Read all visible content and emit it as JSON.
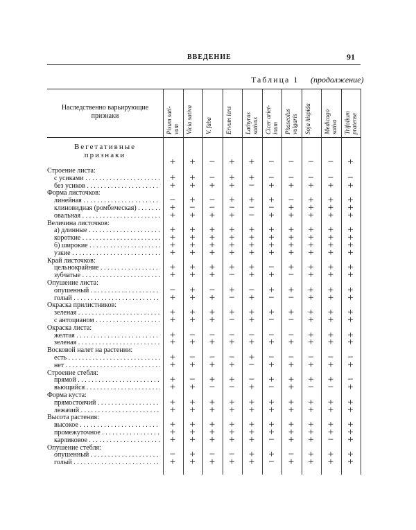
{
  "header": {
    "title": "ВВЕДЕНИЕ",
    "page": "91"
  },
  "table": {
    "caption": "Таблица 1",
    "caption_note": "(продолжение)",
    "first_header": [
      "Наследственно варьирующие",
      "признаки"
    ],
    "columns": [
      [
        "Pisum sati-",
        "vum"
      ],
      [
        "Vicia sativa"
      ],
      [
        "V. faba"
      ],
      [
        "Ervum lens"
      ],
      [
        "Lathyrus",
        "sativus"
      ],
      [
        "Cicer ariet-",
        "inum"
      ],
      [
        "Phaseolus",
        "vulgaris"
      ],
      [
        "Soja hispida"
      ],
      [
        "Medicago",
        "sativa"
      ],
      [
        "Trifolium",
        "pratense"
      ]
    ],
    "section": {
      "title": [
        "Вегетативные",
        "признаки"
      ],
      "cells": [
        "+",
        "+",
        "−",
        "+",
        "+",
        "−",
        "−",
        "−",
        "−",
        "+"
      ]
    },
    "rows": [
      {
        "label": "Строение листа:"
      },
      {
        "label": "с усиками",
        "cells": [
          "+",
          "+",
          "−",
          "+",
          "+",
          "−",
          "−",
          "−",
          "−",
          "−"
        ]
      },
      {
        "label": "без усиков",
        "cells": [
          "+",
          "+",
          "+",
          "+",
          "−",
          "+",
          "+",
          "+",
          "+",
          "+"
        ]
      },
      {
        "label": "Форма листочков:"
      },
      {
        "label": "линейная",
        "cells": [
          "−",
          "+",
          "−",
          "+",
          "+",
          "+",
          "−",
          "+",
          "+",
          "+"
        ]
      },
      {
        "label": "клиновидная (ромбическая)",
        "cells": [
          "+",
          "−",
          "−",
          "−",
          "−",
          "−",
          "+",
          "+",
          "+",
          "+"
        ]
      },
      {
        "label": "овальная",
        "cells": [
          "+",
          "+",
          "+",
          "+",
          "−",
          "+",
          "+",
          "+",
          "+",
          "+"
        ]
      },
      {
        "label": "Величина листочков:"
      },
      {
        "label": "а) длинные",
        "cells": [
          "+",
          "+",
          "+",
          "+",
          "+",
          "+",
          "+",
          "+",
          "+",
          "+"
        ]
      },
      {
        "label": "короткие",
        "cells": [
          "+",
          "+",
          "+",
          "+",
          "+",
          "+",
          "+",
          "+",
          "+",
          "+"
        ]
      },
      {
        "label": "б) широкие",
        "cells": [
          "+",
          "+",
          "+",
          "+",
          "+",
          "+",
          "+",
          "+",
          "+",
          "+"
        ]
      },
      {
        "label": "узкие",
        "cells": [
          "+",
          "+",
          "+",
          "+",
          "+",
          "+",
          "+",
          "+",
          "+",
          "+"
        ]
      },
      {
        "label": "Край листочков:"
      },
      {
        "label": "цельнокрайние",
        "cells": [
          "+",
          "+",
          "+",
          "+",
          "+",
          "−",
          "+",
          "+",
          "+",
          "+"
        ]
      },
      {
        "label": "зубчатые",
        "cells": [
          "+",
          "+",
          "+",
          "−",
          "+",
          "+",
          "−",
          "+",
          "+",
          "+"
        ]
      },
      {
        "label": "Опушение листа:"
      },
      {
        "label": "опушенный",
        "cells": [
          "−",
          "+",
          "−",
          "+",
          "−",
          "+",
          "+",
          "+",
          "+",
          "+"
        ]
      },
      {
        "label": "голый",
        "cells": [
          "+",
          "+",
          "+",
          "−",
          "+",
          "−",
          "−",
          "+",
          "+",
          "+"
        ]
      },
      {
        "label": "Окраска прилистников:"
      },
      {
        "label": "зеленая",
        "cells": [
          "+",
          "+",
          "+",
          "+",
          "+",
          "+",
          "+",
          "+",
          "+",
          "+"
        ]
      },
      {
        "label": "с антоцианом",
        "cells": [
          "+",
          "+",
          "+",
          "−",
          "+",
          "−",
          "−",
          "+",
          "+",
          "+"
        ]
      },
      {
        "label": "Окраска листа:"
      },
      {
        "label": "желтая",
        "cells": [
          "+",
          "−",
          "−",
          "−",
          "−",
          "−",
          "−",
          "+",
          "+",
          "+"
        ]
      },
      {
        "label": "зеленая",
        "cells": [
          "+",
          "+",
          "+",
          "+",
          "+",
          "+",
          "+",
          "+",
          "+",
          "+"
        ]
      },
      {
        "label": "Восковой налет на растении:"
      },
      {
        "label": "есть",
        "cells": [
          "+",
          "−",
          "−",
          "−",
          "+",
          "−",
          "−",
          "−",
          "−",
          "−"
        ]
      },
      {
        "label": "нет",
        "cells": [
          "+",
          "+",
          "+",
          "+",
          "−",
          "+",
          "+",
          "+",
          "+",
          "+"
        ]
      },
      {
        "label": "Строение стебля:"
      },
      {
        "label": "прямой",
        "cells": [
          "+",
          "−",
          "+",
          "+",
          "−",
          "+",
          "+",
          "+",
          "+",
          "−"
        ]
      },
      {
        "label": "вьющийся",
        "cells": [
          "+",
          "+",
          "−",
          "−",
          "+",
          "−",
          "+",
          "−",
          "−",
          "+"
        ]
      },
      {
        "label": "Форма куста:"
      },
      {
        "label": "прямостоячий",
        "cells": [
          "+",
          "+",
          "+",
          "+",
          "+",
          "+",
          "+",
          "+",
          "+",
          "+"
        ]
      },
      {
        "label": "лежачий",
        "cells": [
          "+",
          "+",
          "+",
          "+",
          "+",
          "+",
          "+",
          "+",
          "+",
          "+"
        ]
      },
      {
        "label": "Высота растения:"
      },
      {
        "label": "высокое",
        "cells": [
          "+",
          "+",
          "+",
          "+",
          "+",
          "+",
          "+",
          "+",
          "+",
          "+"
        ]
      },
      {
        "label": "промежуточное",
        "cells": [
          "+",
          "+",
          "+",
          "+",
          "+",
          "+",
          "+",
          "+",
          "+",
          "+"
        ]
      },
      {
        "label": "карликовое",
        "cells": [
          "+",
          "+",
          "+",
          "+",
          "+",
          "−",
          "+",
          "+",
          "−",
          "+"
        ]
      },
      {
        "label": "Опушение стебля:"
      },
      {
        "label": "опушенный",
        "cells": [
          "−",
          "+",
          "−",
          "−",
          "+",
          "+",
          "−",
          "+",
          "+",
          "+"
        ]
      },
      {
        "label": "голый",
        "cells": [
          "+",
          "+",
          "+",
          "+",
          "+",
          "−",
          "+",
          "+",
          "+",
          "+"
        ]
      }
    ]
  }
}
